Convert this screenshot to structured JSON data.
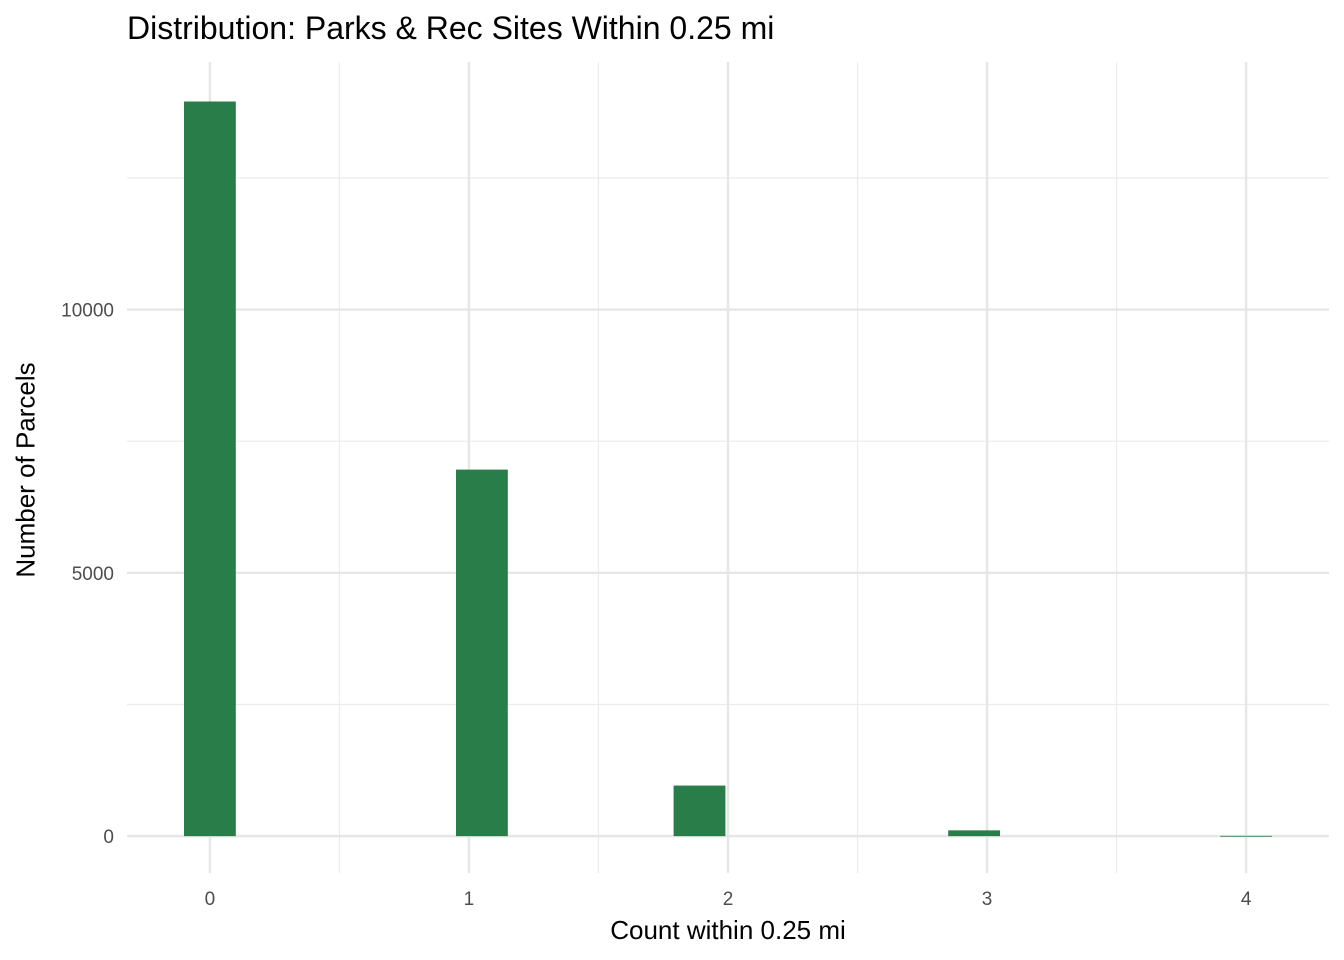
{
  "chart_data": {
    "type": "bar",
    "title": "Distribution: Parks & Rec Sites Within 0.25 mi",
    "xlabel": "Count within 0.25 mi",
    "ylabel": "Number of Parcels",
    "x_ticks": [
      "0",
      "1",
      "2",
      "3",
      "4"
    ],
    "y_ticks": [
      "0",
      "5000",
      "10000"
    ],
    "xlim": [
      -0.32,
      4.32
    ],
    "ylim": [
      -700,
      14700
    ],
    "bar_width": 0.2,
    "bars": [
      {
        "x": 0.0,
        "value": 13950
      },
      {
        "x": 1.05,
        "value": 6960
      },
      {
        "x": 1.89,
        "value": 960
      },
      {
        "x": 2.95,
        "value": 110
      },
      {
        "x": 4.0,
        "value": 5
      }
    ],
    "bar_color": "#287D48",
    "grid": true
  }
}
